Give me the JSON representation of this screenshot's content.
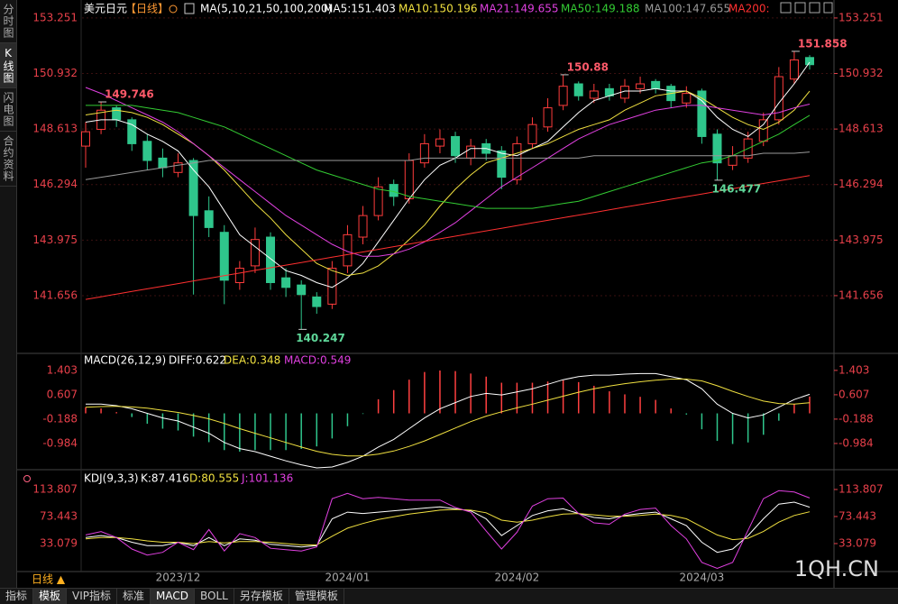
{
  "ui": {
    "sidebar": [
      "分时图",
      "K线图",
      "闪电图",
      "合约资料"
    ],
    "period": "日线 ▲",
    "tabs": [
      "指标",
      "模板",
      "VIP指标",
      "标准",
      "MACD",
      "BOLL",
      "另存模板",
      "管理模板"
    ],
    "watermark": "1QH.CN"
  },
  "chart_data": [
    {
      "type": "candlestick",
      "title": "美元日元",
      "subtitle": "【日线】",
      "indicator": "MA(5,10,21,50,100,200)",
      "categories": [
        null,
        null,
        null,
        null,
        null,
        null,
        "2023/12",
        null,
        null,
        null,
        null,
        null,
        null,
        null,
        null,
        null,
        null,
        "2024/01",
        null,
        null,
        null,
        null,
        null,
        null,
        null,
        null,
        null,
        null,
        "2024/02",
        null,
        null,
        null,
        null,
        null,
        null,
        null,
        null,
        null,
        null,
        null,
        "2024/03",
        null,
        null,
        null,
        null,
        null,
        null,
        null
      ],
      "open": [
        147.9,
        148.6,
        149.5,
        149.0,
        148.1,
        147.4,
        146.8,
        147.3,
        145.2,
        144.3,
        142.2,
        142.9,
        144.1,
        142.4,
        142.1,
        141.6,
        141.3,
        142.9,
        144.1,
        145.0,
        146.3,
        145.7,
        147.2,
        147.9,
        148.3,
        147.4,
        148.0,
        147.7,
        146.5,
        148.0,
        148.7,
        149.6,
        150.5,
        149.9,
        150.3,
        149.9,
        150.3,
        150.6,
        150.4,
        149.7,
        150.2,
        148.4,
        147.1,
        147.4,
        148.1,
        149.0,
        150.7,
        151.6
      ],
      "high": [
        148.9,
        149.746,
        149.6,
        149.1,
        148.4,
        147.8,
        147.6,
        147.4,
        145.8,
        144.6,
        143.1,
        144.5,
        144.3,
        142.8,
        142.3,
        141.8,
        143.1,
        144.6,
        145.4,
        146.6,
        146.5,
        147.6,
        148.4,
        148.6,
        148.5,
        148.2,
        148.2,
        147.9,
        148.3,
        149.1,
        149.9,
        150.88,
        150.6,
        150.5,
        150.5,
        150.7,
        150.8,
        150.7,
        150.5,
        150.4,
        150.3,
        148.6,
        147.9,
        148.5,
        149.3,
        151.2,
        151.858,
        151.7
      ],
      "low": [
        147.0,
        148.4,
        148.7,
        147.7,
        146.9,
        146.6,
        146.6,
        141.7,
        144.1,
        141.3,
        141.9,
        142.6,
        141.9,
        141.6,
        140.247,
        140.9,
        141.1,
        142.6,
        143.8,
        144.8,
        145.4,
        145.5,
        147.0,
        147.6,
        147.2,
        147.1,
        147.3,
        146.1,
        146.3,
        147.8,
        148.5,
        149.4,
        149.8,
        149.7,
        149.8,
        149.7,
        150.1,
        150.1,
        149.5,
        149.5,
        148.0,
        146.477,
        146.9,
        147.2,
        147.9,
        148.8,
        150.5,
        151.1
      ],
      "close": [
        148.5,
        149.4,
        149.0,
        148.0,
        147.3,
        147.0,
        147.2,
        145.0,
        144.5,
        142.3,
        142.8,
        144.0,
        142.2,
        142.0,
        141.7,
        141.2,
        142.8,
        144.2,
        145.0,
        146.2,
        145.8,
        147.3,
        148.0,
        148.2,
        147.5,
        147.9,
        147.6,
        146.6,
        148.0,
        148.8,
        149.5,
        150.4,
        150.0,
        150.2,
        150.0,
        150.4,
        150.5,
        150.3,
        149.8,
        150.1,
        148.3,
        147.2,
        147.5,
        148.2,
        149.0,
        150.8,
        151.5,
        151.3
      ],
      "up_color": "#ff3c3c",
      "down_color": "#2fc68c",
      "series": [
        {
          "name": "MA5:151.403",
          "color": "#ffffff",
          "values": [
            148.9,
            149.0,
            149.0,
            148.8,
            148.4,
            148.1,
            147.7,
            146.9,
            146.2,
            145.2,
            144.2,
            143.7,
            143.2,
            142.7,
            142.5,
            142.2,
            142.0,
            142.4,
            143.0,
            143.9,
            144.8,
            145.7,
            146.5,
            147.1,
            147.4,
            147.8,
            147.8,
            147.6,
            147.5,
            147.8,
            148.1,
            148.7,
            149.3,
            149.8,
            150.0,
            150.2,
            150.2,
            150.3,
            150.2,
            150.2,
            149.8,
            149.1,
            148.6,
            148.3,
            148.8,
            149.7,
            150.5,
            151.403
          ]
        },
        {
          "name": "MA10:150.196",
          "color": "#f0e040",
          "values": [
            149.2,
            149.3,
            149.4,
            149.3,
            149.1,
            148.8,
            148.4,
            148.0,
            147.5,
            146.9,
            146.2,
            145.5,
            144.9,
            144.2,
            143.6,
            143.0,
            142.7,
            142.5,
            142.6,
            142.9,
            143.4,
            144.0,
            144.6,
            145.4,
            146.1,
            146.7,
            147.2,
            147.4,
            147.6,
            147.8,
            148.0,
            148.3,
            148.6,
            148.8,
            149.0,
            149.4,
            149.7,
            150.0,
            150.1,
            150.2,
            149.9,
            149.5,
            149.1,
            148.8,
            148.6,
            148.9,
            149.4,
            150.196
          ]
        },
        {
          "name": "MA21:149.655",
          "color": "#e040e0",
          "values": [
            150.35,
            150.1,
            149.8,
            149.5,
            149.2,
            148.9,
            148.5,
            148.0,
            147.5,
            147.0,
            146.5,
            146.0,
            145.5,
            145.0,
            144.6,
            144.2,
            143.8,
            143.5,
            143.3,
            143.3,
            143.4,
            143.6,
            143.9,
            144.3,
            144.7,
            145.2,
            145.7,
            146.2,
            146.6,
            147.0,
            147.4,
            147.8,
            148.2,
            148.5,
            148.8,
            149.0,
            149.2,
            149.4,
            149.5,
            149.6,
            149.6,
            149.5,
            149.4,
            149.3,
            149.2,
            149.3,
            149.5,
            149.655
          ]
        },
        {
          "name": "MA50:149.188",
          "color": "#33cc33",
          "values": [
            149.6,
            149.6,
            149.6,
            149.6,
            149.5,
            149.4,
            149.3,
            149.1,
            148.9,
            148.7,
            148.4,
            148.1,
            147.8,
            147.5,
            147.2,
            146.9,
            146.7,
            146.5,
            146.3,
            146.1,
            146.0,
            145.8,
            145.7,
            145.6,
            145.5,
            145.4,
            145.3,
            145.3,
            145.3,
            145.3,
            145.4,
            145.5,
            145.6,
            145.8,
            146.0,
            146.2,
            146.4,
            146.6,
            146.8,
            147.0,
            147.2,
            147.3,
            147.5,
            147.8,
            148.1,
            148.4,
            148.8,
            149.188
          ]
        },
        {
          "name": "MA100:147.655",
          "color": "#9a9a9a",
          "values": [
            146.5,
            146.6,
            146.7,
            146.8,
            146.9,
            147.0,
            147.1,
            147.2,
            147.3,
            147.3,
            147.3,
            147.3,
            147.3,
            147.3,
            147.3,
            147.3,
            147.3,
            147.3,
            147.3,
            147.3,
            147.3,
            147.3,
            147.4,
            147.4,
            147.4,
            147.4,
            147.4,
            147.4,
            147.4,
            147.4,
            147.4,
            147.4,
            147.4,
            147.5,
            147.5,
            147.5,
            147.5,
            147.5,
            147.5,
            147.5,
            147.5,
            147.5,
            147.5,
            147.5,
            147.6,
            147.6,
            147.6,
            147.655
          ]
        },
        {
          "name": "MA200:",
          "color": "#ff3030",
          "values": [
            141.5,
            141.61,
            141.72,
            141.83,
            141.94,
            142.05,
            142.16,
            142.27,
            142.38,
            142.49,
            142.6,
            142.71,
            142.82,
            142.93,
            143.04,
            143.15,
            143.26,
            143.37,
            143.48,
            143.59,
            143.7,
            143.81,
            143.92,
            144.03,
            144.14,
            144.25,
            144.36,
            144.47,
            144.58,
            144.69,
            144.8,
            144.91,
            145.02,
            145.13,
            145.24,
            145.35,
            145.46,
            145.57,
            145.68,
            145.79,
            145.9,
            146.01,
            146.12,
            146.23,
            146.34,
            146.45,
            146.56,
            146.67
          ]
        }
      ],
      "ylim": [
        139.32,
        153.7
      ],
      "yticks": [
        141.656,
        143.975,
        146.294,
        148.613,
        150.932,
        153.251
      ],
      "grid": true
    },
    {
      "type": "macd",
      "title": "MACD(26,12,9)",
      "series": [
        {
          "name": "DIFF:0.622",
          "color": "#ffffff",
          "values": [
            0.3,
            0.3,
            0.25,
            0.15,
            0.0,
            -0.15,
            -0.25,
            -0.45,
            -0.65,
            -0.95,
            -1.15,
            -1.25,
            -1.4,
            -1.55,
            -1.68,
            -1.78,
            -1.75,
            -1.6,
            -1.4,
            -1.1,
            -0.85,
            -0.5,
            -0.15,
            0.15,
            0.35,
            0.55,
            0.65,
            0.6,
            0.7,
            0.8,
            0.95,
            1.1,
            1.2,
            1.25,
            1.25,
            1.28,
            1.3,
            1.3,
            1.2,
            1.1,
            0.8,
            0.3,
            0.0,
            -0.15,
            -0.05,
            0.2,
            0.45,
            0.622
          ]
        },
        {
          "name": "DEA:0.348",
          "color": "#f0e040",
          "values": [
            0.2,
            0.22,
            0.23,
            0.21,
            0.17,
            0.1,
            0.03,
            -0.07,
            -0.18,
            -0.33,
            -0.5,
            -0.65,
            -0.8,
            -0.95,
            -1.1,
            -1.24,
            -1.34,
            -1.39,
            -1.39,
            -1.33,
            -1.23,
            -1.08,
            -0.9,
            -0.69,
            -0.48,
            -0.27,
            -0.09,
            0.05,
            0.18,
            0.3,
            0.43,
            0.56,
            0.69,
            0.8,
            0.89,
            0.97,
            1.03,
            1.08,
            1.12,
            1.12,
            1.06,
            0.9,
            0.72,
            0.55,
            0.4,
            0.32,
            0.3,
            0.348
          ]
        }
      ],
      "histogram": {
        "name": "MACD:0.549",
        "color": "#e040e0",
        "up_color": "#ff4040",
        "down_color": "#2fc68c",
        "values": [
          0.2,
          0.16,
          0.04,
          -0.12,
          -0.34,
          -0.5,
          -0.56,
          -0.76,
          -0.94,
          -1.2,
          -1.25,
          -1.2,
          -1.2,
          -1.2,
          -1.16,
          -1.08,
          -0.82,
          -0.42,
          -0.02,
          0.46,
          0.76,
          1.1,
          1.35,
          1.4,
          1.38,
          1.3,
          1.2,
          1.0,
          1.0,
          1.0,
          1.04,
          1.08,
          1.02,
          0.9,
          0.72,
          0.62,
          0.54,
          0.44,
          0.16,
          -0.04,
          -0.52,
          -0.9,
          -1.0,
          -0.95,
          -0.7,
          -0.24,
          0.3,
          0.549
        ]
      },
      "ylim": [
        -1.81,
        1.87
      ],
      "yticks": [
        -0.984,
        -0.188,
        0.607,
        1.403
      ]
    },
    {
      "type": "line",
      "title": "KDJ(9,3,3)",
      "series": [
        {
          "name": "K:87.416",
          "color": "#ffffff",
          "values": [
            42,
            45,
            42,
            35,
            30,
            30,
            35,
            30,
            42,
            30,
            40,
            38,
            32,
            30,
            28,
            30,
            70,
            80,
            78,
            80,
            82,
            84,
            86,
            88,
            85,
            82,
            70,
            45,
            60,
            75,
            82,
            85,
            78,
            72,
            70,
            75,
            78,
            80,
            70,
            60,
            35,
            20,
            25,
            45,
            70,
            92,
            95,
            87.416
          ]
        },
        {
          "name": "D:80.555",
          "color": "#f0e040",
          "values": [
            40,
            42,
            42,
            40,
            37,
            35,
            35,
            33,
            36,
            34,
            36,
            36,
            35,
            33,
            31,
            31,
            44,
            56,
            63,
            69,
            73,
            77,
            80,
            83,
            84,
            83,
            79,
            68,
            65,
            68,
            73,
            77,
            78,
            76,
            74,
            74,
            75,
            77,
            75,
            70,
            58,
            46,
            39,
            41,
            51,
            65,
            75,
            80.555
          ]
        },
        {
          "name": "J:101.136",
          "color": "#e040e0",
          "values": [
            46,
            51,
            42,
            25,
            16,
            20,
            35,
            24,
            54,
            22,
            48,
            42,
            26,
            24,
            22,
            28,
            100,
            108,
            100,
            102,
            100,
            98,
            98,
            98,
            87,
            80,
            52,
            25,
            50,
            89,
            100,
            101,
            78,
            64,
            62,
            77,
            84,
            86,
            60,
            40,
            5,
            -4,
            5,
            53,
            100,
            112,
            110,
            101.136
          ]
        }
      ],
      "ylim": [
        -6,
        138
      ],
      "yticks": [
        33.079,
        73.443,
        113.807
      ]
    }
  ]
}
